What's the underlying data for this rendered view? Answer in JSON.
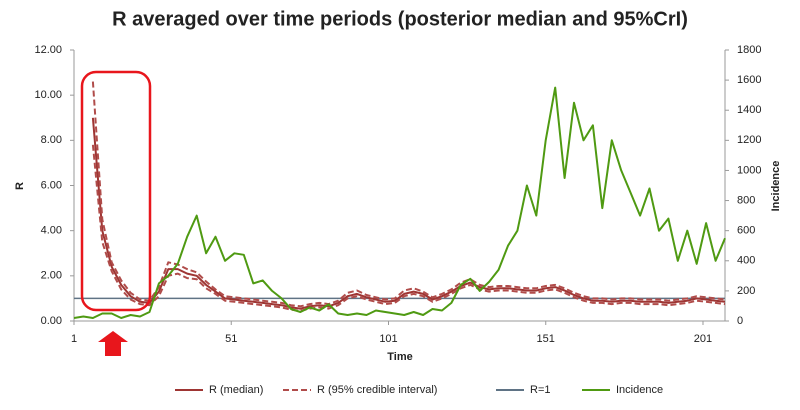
{
  "chart_data": {
    "type": "line",
    "title": "R averaged over time periods (posterior median and 95%CrI)",
    "x_label": "Time",
    "y_label": "R",
    "y2_label": "Incidence",
    "x": [
      1,
      4,
      7,
      10,
      13,
      16,
      19,
      22,
      25,
      28,
      31,
      34,
      37,
      40,
      43,
      46,
      49,
      52,
      55,
      58,
      61,
      64,
      67,
      70,
      73,
      76,
      79,
      82,
      85,
      88,
      91,
      94,
      97,
      100,
      103,
      106,
      109,
      112,
      115,
      118,
      121,
      124,
      127,
      130,
      133,
      136,
      139,
      142,
      145,
      148,
      151,
      154,
      157,
      160,
      163,
      166,
      169,
      172,
      175,
      178,
      181,
      184,
      187,
      190,
      193,
      196,
      199,
      202,
      205,
      208
    ],
    "xlim": [
      1,
      208
    ],
    "xticks": [
      1,
      51,
      101,
      151,
      201
    ],
    "ylim": [
      0,
      12
    ],
    "yticks": [
      {
        "value": 0,
        "label": "0.00"
      },
      {
        "value": 2,
        "label": "2.00"
      },
      {
        "value": 4,
        "label": "4.00"
      },
      {
        "value": 6,
        "label": "6.00"
      },
      {
        "value": 8,
        "label": "8.00"
      },
      {
        "value": 10,
        "label": "10.00"
      },
      {
        "value": 12,
        "label": "12.00"
      }
    ],
    "y2lim": [
      0,
      1800
    ],
    "y2ticks": [
      0,
      200,
      400,
      600,
      800,
      1000,
      1200,
      1400,
      1600,
      1800
    ],
    "hline": {
      "name": "R=1",
      "value": 1,
      "color": "#5f7385"
    },
    "series": [
      {
        "name": "R (median)",
        "color": "#9e3533",
        "dash": false,
        "axis": "y",
        "values": [
          null,
          null,
          9.0,
          4.0,
          2.4,
          1.6,
          1.1,
          0.85,
          0.8,
          1.3,
          2.3,
          2.3,
          2.1,
          2.0,
          1.6,
          1.3,
          1.0,
          0.95,
          0.9,
          0.85,
          0.8,
          0.75,
          0.7,
          0.6,
          0.55,
          0.65,
          0.7,
          0.65,
          0.8,
          1.1,
          1.2,
          1.05,
          0.95,
          0.85,
          0.9,
          1.2,
          1.3,
          1.2,
          0.95,
          1.1,
          1.3,
          1.55,
          1.7,
          1.5,
          1.4,
          1.45,
          1.45,
          1.4,
          1.35,
          1.35,
          1.45,
          1.5,
          1.35,
          1.15,
          1.0,
          0.9,
          0.9,
          0.85,
          0.9,
          0.9,
          0.85,
          0.85,
          0.85,
          0.8,
          0.85,
          0.9,
          1.0,
          0.95,
          0.9,
          0.85
        ]
      },
      {
        "name": "R (95% credible interval)",
        "color": "#b04c4a",
        "dash": true,
        "axis": "y",
        "values": [
          null,
          null,
          10.6,
          4.5,
          2.6,
          1.8,
          1.25,
          0.95,
          0.9,
          1.5,
          2.6,
          2.5,
          2.3,
          2.15,
          1.75,
          1.4,
          1.1,
          1.05,
          1.0,
          0.95,
          0.9,
          0.85,
          0.8,
          0.7,
          0.65,
          0.75,
          0.8,
          0.75,
          0.9,
          1.25,
          1.35,
          1.15,
          1.05,
          0.95,
          1.0,
          1.35,
          1.45,
          1.3,
          1.05,
          1.2,
          1.4,
          1.7,
          1.85,
          1.6,
          1.5,
          1.55,
          1.55,
          1.5,
          1.45,
          1.45,
          1.55,
          1.6,
          1.45,
          1.25,
          1.1,
          1.0,
          1.0,
          0.95,
          1.0,
          1.0,
          0.95,
          0.95,
          0.95,
          0.9,
          0.95,
          1.0,
          1.1,
          1.05,
          1.0,
          0.95
        ]
      },
      {
        "color": "#b04c4a",
        "dash": true,
        "axis": "y",
        "values": [
          null,
          null,
          7.8,
          3.5,
          2.2,
          1.4,
          0.95,
          0.75,
          0.7,
          1.1,
          2.0,
          2.1,
          1.9,
          1.85,
          1.45,
          1.2,
          0.9,
          0.85,
          0.8,
          0.75,
          0.7,
          0.65,
          0.6,
          0.5,
          0.45,
          0.55,
          0.6,
          0.55,
          0.7,
          1.0,
          1.1,
          0.95,
          0.85,
          0.75,
          0.8,
          1.1,
          1.2,
          1.1,
          0.85,
          1.0,
          1.2,
          1.45,
          1.6,
          1.4,
          1.3,
          1.35,
          1.35,
          1.3,
          1.25,
          1.25,
          1.35,
          1.4,
          1.25,
          1.05,
          0.9,
          0.8,
          0.8,
          0.75,
          0.8,
          0.8,
          0.75,
          0.75,
          0.75,
          0.7,
          0.75,
          0.8,
          0.9,
          0.85,
          0.8,
          0.75
        ]
      },
      {
        "name": "Incidence",
        "color": "#4f9a12",
        "dash": false,
        "axis": "y2",
        "values": [
          20,
          30,
          20,
          50,
          50,
          20,
          40,
          30,
          60,
          250,
          300,
          380,
          560,
          700,
          450,
          560,
          400,
          450,
          440,
          250,
          270,
          200,
          150,
          80,
          60,
          90,
          70,
          110,
          50,
          40,
          50,
          40,
          70,
          60,
          50,
          40,
          60,
          40,
          80,
          70,
          120,
          240,
          280,
          200,
          260,
          340,
          500,
          600,
          900,
          700,
          1200,
          1550,
          950,
          1450,
          1200,
          1300,
          750,
          1200,
          1000,
          850,
          700,
          880,
          600,
          680,
          400,
          600,
          380,
          650,
          400,
          550
        ]
      }
    ]
  }
}
